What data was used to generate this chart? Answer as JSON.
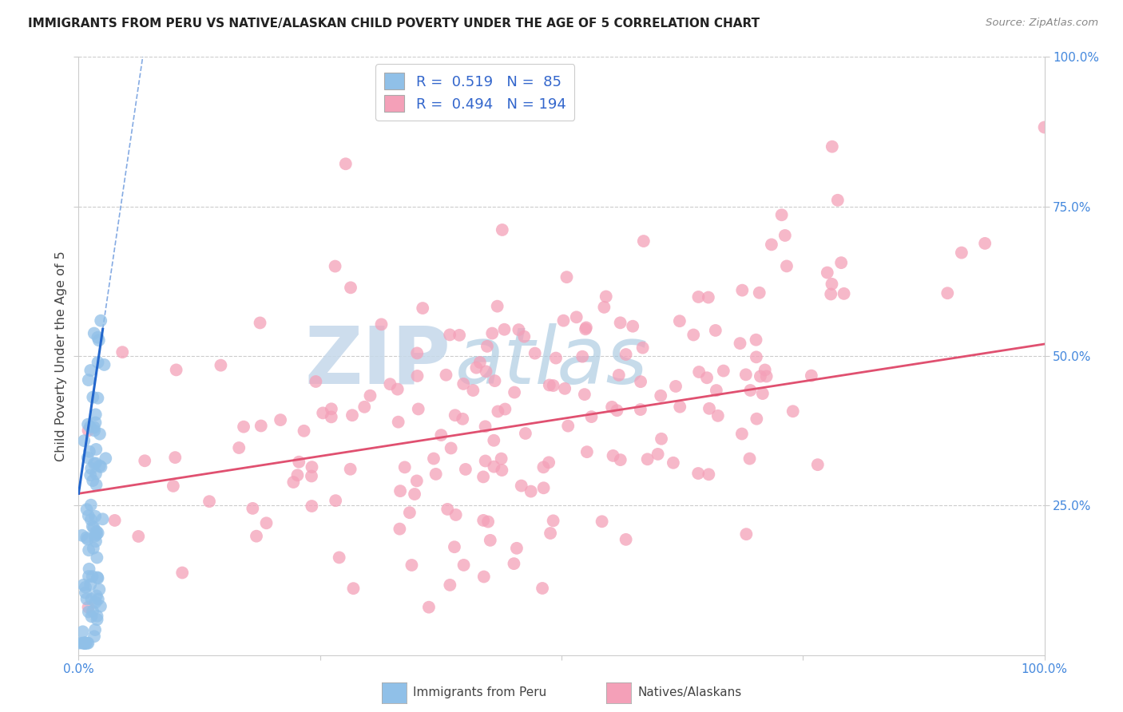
{
  "title": "IMMIGRANTS FROM PERU VS NATIVE/ALASKAN CHILD POVERTY UNDER THE AGE OF 5 CORRELATION CHART",
  "source": "Source: ZipAtlas.com",
  "ylabel": "Child Poverty Under the Age of 5",
  "watermark_text": "ZIPAtlas",
  "legend_blue_R": "0.519",
  "legend_blue_N": "85",
  "legend_pink_R": "0.494",
  "legend_pink_N": "194",
  "legend_label_blue": "Immigrants from Peru",
  "legend_label_pink": "Natives/Alaskans",
  "blue_scatter_color": "#90c0e8",
  "pink_scatter_color": "#f4a0b8",
  "trend_blue_color": "#2266cc",
  "trend_pink_color": "#e05070",
  "watermark_color": "#c5d8ea",
  "background_color": "#ffffff",
  "grid_color": "#cccccc",
  "tick_color": "#4488dd",
  "title_color": "#222222",
  "source_color": "#888888",
  "ylabel_color": "#444444",
  "legend_text_color": "#3366cc"
}
